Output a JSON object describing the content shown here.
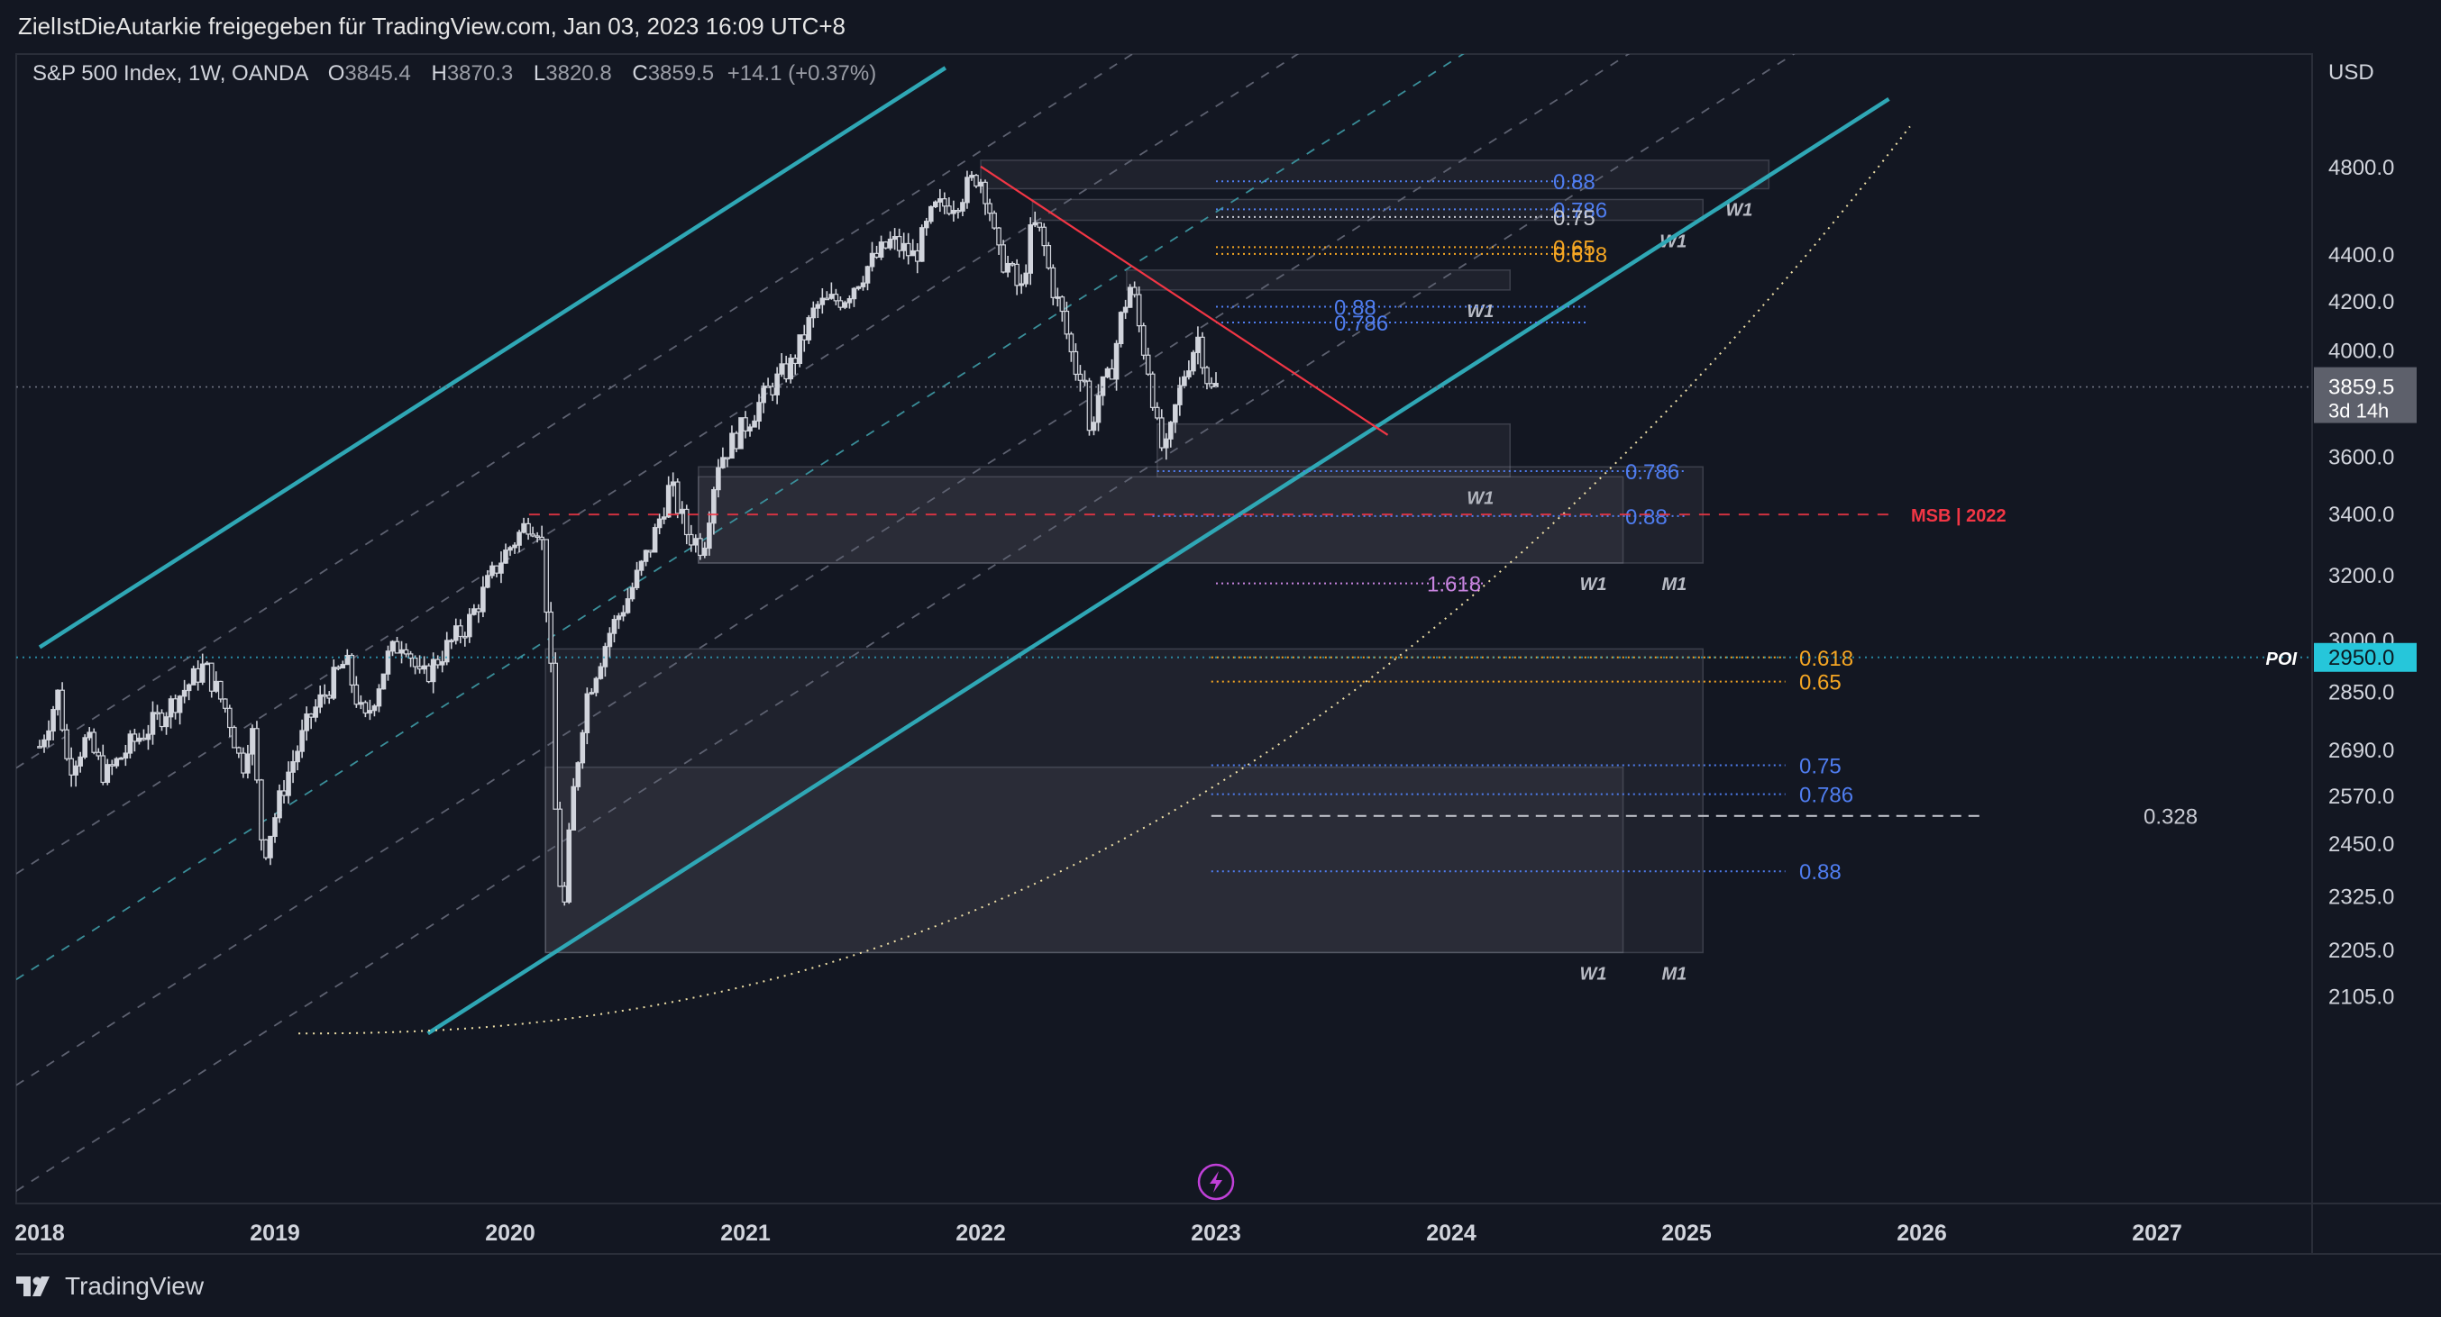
{
  "header": {
    "publisher_line": "ZielIstDieAutarkie freigegeben für TradingView.com, Jan 03, 2023 16:09 UTC+8"
  },
  "legend": {
    "symbol": "S&P 500 Index, 1W, OANDA",
    "open_label": "O",
    "open": "3845.4",
    "high_label": "H",
    "high": "3870.3",
    "low_label": "L",
    "low": "3820.8",
    "close_label": "C",
    "close": "3859.5",
    "change": "+14.1 (+0.37%)"
  },
  "footer": {
    "brand": "TradingView"
  },
  "colors": {
    "background": "#131722",
    "channel": "#2fa7b5",
    "candles": "#d1d4dc",
    "trendline": "#f23645",
    "fib_blue": "#4f7df0",
    "fib_orange": "#f5a623",
    "fib_purple": "#c884e0",
    "poi_badge": "#26c6da"
  },
  "chart_data": {
    "type": "candlestick",
    "symbol": "S&P 500 Index",
    "interval": "1W",
    "currency": "USD",
    "scale": "log",
    "ylim": [
      2030,
      5150
    ],
    "xlim": [
      2018.0,
      2027.7
    ],
    "x_ticks": [
      "2018",
      "2019",
      "2020",
      "2021",
      "2022",
      "2023",
      "2024",
      "2025",
      "2026",
      "2027"
    ],
    "y_ticks": [
      "4800.0",
      "4400.0",
      "4200.0",
      "4000.0",
      "3600.0",
      "3400.0",
      "3200.0",
      "3000.0",
      "2850.0",
      "2690.0",
      "2570.0",
      "2450.0",
      "2325.0",
      "2205.0",
      "2105.0"
    ],
    "last_price": {
      "value": 3859.5,
      "label": "3859.5",
      "countdown": "3d 14h"
    },
    "poi": {
      "value": 2950.0,
      "label": "POI",
      "price_label": "2950.0"
    },
    "weekly_closes": [
      {
        "t": 2018.0,
        "c": 2700
      },
      {
        "t": 2018.08,
        "c": 2850
      },
      {
        "t": 2018.12,
        "c": 2640
      },
      {
        "t": 2018.2,
        "c": 2720
      },
      {
        "t": 2018.28,
        "c": 2620
      },
      {
        "t": 2018.38,
        "c": 2700
      },
      {
        "t": 2018.48,
        "c": 2760
      },
      {
        "t": 2018.58,
        "c": 2830
      },
      {
        "t": 2018.7,
        "c": 2925
      },
      {
        "t": 2018.8,
        "c": 2790
      },
      {
        "t": 2018.86,
        "c": 2640
      },
      {
        "t": 2018.9,
        "c": 2760
      },
      {
        "t": 2018.95,
        "c": 2420
      },
      {
        "t": 2018.98,
        "c": 2480
      },
      {
        "t": 2019.05,
        "c": 2620
      },
      {
        "t": 2019.15,
        "c": 2780
      },
      {
        "t": 2019.3,
        "c": 2940
      },
      {
        "t": 2019.38,
        "c": 2760
      },
      {
        "t": 2019.48,
        "c": 2950
      },
      {
        "t": 2019.55,
        "c": 3010
      },
      {
        "t": 2019.62,
        "c": 2880
      },
      {
        "t": 2019.72,
        "c": 2970
      },
      {
        "t": 2019.82,
        "c": 3050
      },
      {
        "t": 2019.95,
        "c": 3240
      },
      {
        "t": 2020.08,
        "c": 3380
      },
      {
        "t": 2020.13,
        "c": 3350
      },
      {
        "t": 2020.17,
        "c": 2960
      },
      {
        "t": 2020.2,
        "c": 2400
      },
      {
        "t": 2020.23,
        "c": 2300
      },
      {
        "t": 2020.26,
        "c": 2540
      },
      {
        "t": 2020.32,
        "c": 2830
      },
      {
        "t": 2020.42,
        "c": 3020
      },
      {
        "t": 2020.5,
        "c": 3130
      },
      {
        "t": 2020.6,
        "c": 3300
      },
      {
        "t": 2020.68,
        "c": 3500
      },
      {
        "t": 2020.75,
        "c": 3340
      },
      {
        "t": 2020.82,
        "c": 3290
      },
      {
        "t": 2020.88,
        "c": 3580
      },
      {
        "t": 2021.0,
        "c": 3720
      },
      {
        "t": 2021.1,
        "c": 3850
      },
      {
        "t": 2021.2,
        "c": 3950
      },
      {
        "t": 2021.3,
        "c": 4180
      },
      {
        "t": 2021.42,
        "c": 4220
      },
      {
        "t": 2021.52,
        "c": 4350
      },
      {
        "t": 2021.62,
        "c": 4460
      },
      {
        "t": 2021.72,
        "c": 4390
      },
      {
        "t": 2021.8,
        "c": 4600
      },
      {
        "t": 2021.9,
        "c": 4650
      },
      {
        "t": 2021.99,
        "c": 4770
      },
      {
        "t": 2022.03,
        "c": 4660
      },
      {
        "t": 2022.07,
        "c": 4400
      },
      {
        "t": 2022.12,
        "c": 4350
      },
      {
        "t": 2022.17,
        "c": 4230
      },
      {
        "t": 2022.22,
        "c": 4540
      },
      {
        "t": 2022.26,
        "c": 4480
      },
      {
        "t": 2022.3,
        "c": 4280
      },
      {
        "t": 2022.35,
        "c": 4130
      },
      {
        "t": 2022.4,
        "c": 3930
      },
      {
        "t": 2022.44,
        "c": 3920
      },
      {
        "t": 2022.46,
        "c": 3680
      },
      {
        "t": 2022.5,
        "c": 3830
      },
      {
        "t": 2022.55,
        "c": 3900
      },
      {
        "t": 2022.6,
        "c": 4150
      },
      {
        "t": 2022.64,
        "c": 4280
      },
      {
        "t": 2022.68,
        "c": 4060
      },
      {
        "t": 2022.72,
        "c": 3900
      },
      {
        "t": 2022.75,
        "c": 3700
      },
      {
        "t": 2022.78,
        "c": 3600
      },
      {
        "t": 2022.8,
        "c": 3650
      },
      {
        "t": 2022.82,
        "c": 3750
      },
      {
        "t": 2022.86,
        "c": 3900
      },
      {
        "t": 2022.9,
        "c": 4000
      },
      {
        "t": 2022.93,
        "c": 4070
      },
      {
        "t": 2022.95,
        "c": 3930
      },
      {
        "t": 2022.98,
        "c": 3845
      },
      {
        "t": 2023.0,
        "c": 3859.5
      }
    ],
    "channel": {
      "upper": {
        "from": {
          "t": 2018.0,
          "v": 2980
        },
        "to": {
          "t": 2021.85,
          "v": 5300
        }
      },
      "lower": {
        "from": {
          "t": 2019.65,
          "v": 2030
        },
        "to": {
          "t": 2025.86,
          "v": 4690
        }
      }
    },
    "trendline": {
      "from": {
        "t": 2022.0,
        "v": 4805
      },
      "to": {
        "t": 2023.73,
        "v": 3680
      }
    },
    "msb": {
      "value": 3400,
      "label": "MSB | 2022"
    },
    "zones": [
      {
        "label": "W1",
        "t0": 2022.0,
        "t1": 2025.35,
        "v0": 4700,
        "v1": 4835
      },
      {
        "label": "W1",
        "t0": 2022.22,
        "t1": 2025.07,
        "v0": 4555,
        "v1": 4650
      },
      {
        "label": "W1",
        "t0": 2022.62,
        "t1": 2024.25,
        "v0": 4250,
        "v1": 4335
      },
      {
        "label": "W1",
        "t0": 2022.75,
        "t1": 2024.25,
        "v0": 3530,
        "v1": 3720
      },
      {
        "label": "W1",
        "t0": 2020.8,
        "t1": 2024.73,
        "v0": 3240,
        "v1": 3530
      },
      {
        "label": "M1",
        "t0": 2020.8,
        "t1": 2025.07,
        "v0": 3240,
        "v1": 3565
      },
      {
        "label": "W1",
        "t0": 2020.15,
        "t1": 2024.73,
        "v0": 2200,
        "v1": 2645
      },
      {
        "label": "M1",
        "t0": 2020.15,
        "t1": 2025.07,
        "v0": 2200,
        "v1": 2975
      }
    ],
    "fib_levels": [
      {
        "label": "0.88",
        "value": 4735,
        "color": "blue"
      },
      {
        "label": "0.786",
        "value": 4605,
        "color": "blue"
      },
      {
        "label": "0.75",
        "value": 4570,
        "color": "white"
      },
      {
        "label": "0.65",
        "value": 4435,
        "color": "orange"
      },
      {
        "label": "0.618",
        "value": 4405,
        "color": "orange"
      },
      {
        "label": "0.88",
        "value": 4180,
        "color": "blue"
      },
      {
        "label": "0.786",
        "value": 4115,
        "color": "blue"
      },
      {
        "label": "0.786",
        "value": 3550,
        "color": "blue"
      },
      {
        "label": "0.88",
        "value": 3395,
        "color": "blue"
      },
      {
        "label": "1.618",
        "value": 3175,
        "color": "purple"
      },
      {
        "label": "0.618",
        "value": 2950,
        "color": "orange"
      },
      {
        "label": "0.65",
        "value": 2880,
        "color": "orange"
      },
      {
        "label": "0.75",
        "value": 2650,
        "color": "blue"
      },
      {
        "label": "0.786",
        "value": 2575,
        "color": "blue"
      },
      {
        "label": "0.328",
        "value": 2520,
        "color": "white"
      },
      {
        "label": "0.88",
        "value": 2385,
        "color": "blue"
      }
    ]
  }
}
